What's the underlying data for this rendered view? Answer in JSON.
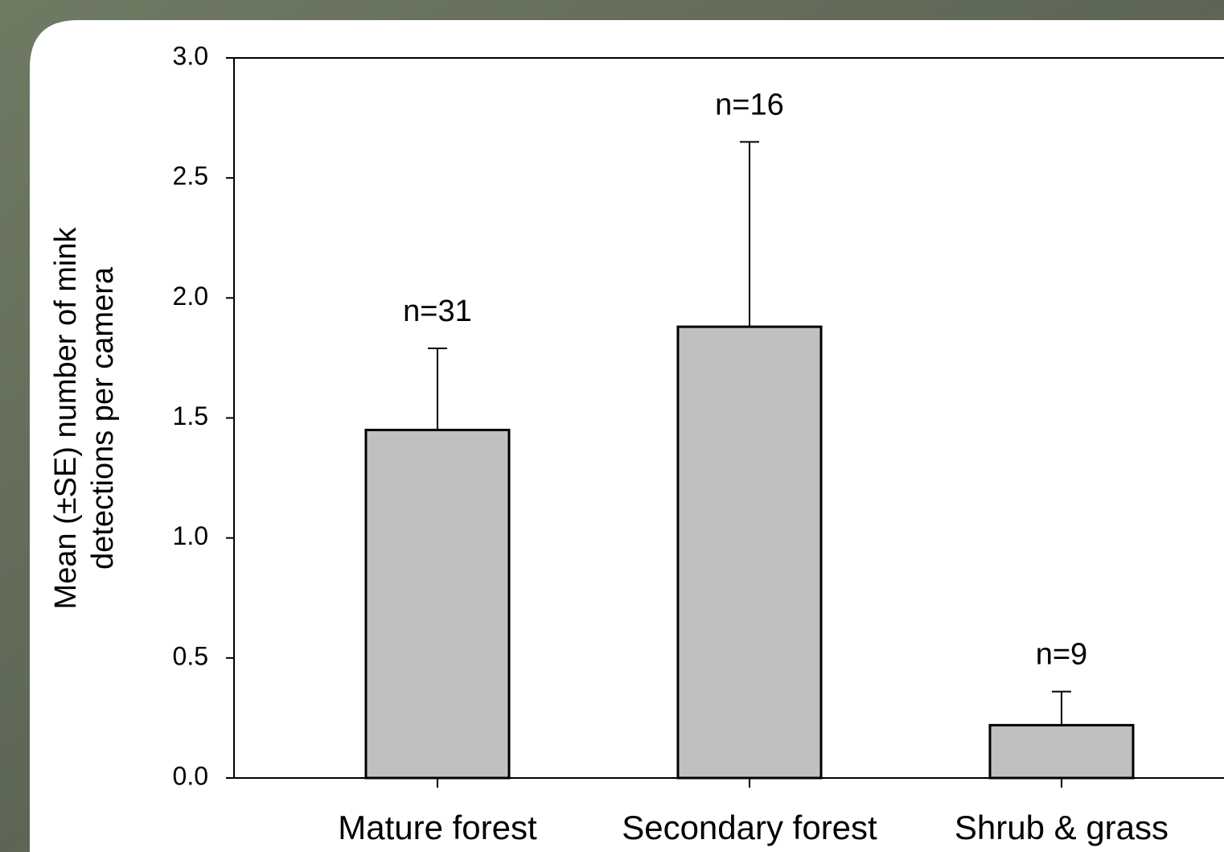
{
  "chart_data": {
    "type": "bar",
    "ylabel": [
      "Mean (±SE) number of mink",
      "detections per camera"
    ],
    "categories": [
      "Mature forest",
      "Secondary forest",
      "Shrub & grass"
    ],
    "values": [
      1.45,
      1.88,
      0.22
    ],
    "errors": [
      0.34,
      0.77,
      0.14
    ],
    "annotations": [
      "n=31",
      "n=16",
      "n=9"
    ],
    "color": "#c0c0c0",
    "ylim": [
      0,
      3
    ],
    "yticks": [
      {
        "value": 0,
        "label": "0.0"
      },
      0.5,
      {
        "value": 1,
        "label": "1.0"
      },
      1.5,
      {
        "value": 2,
        "label": "2.0"
      },
      2.5,
      {
        "value": 3,
        "label": "3.0"
      }
    ]
  }
}
